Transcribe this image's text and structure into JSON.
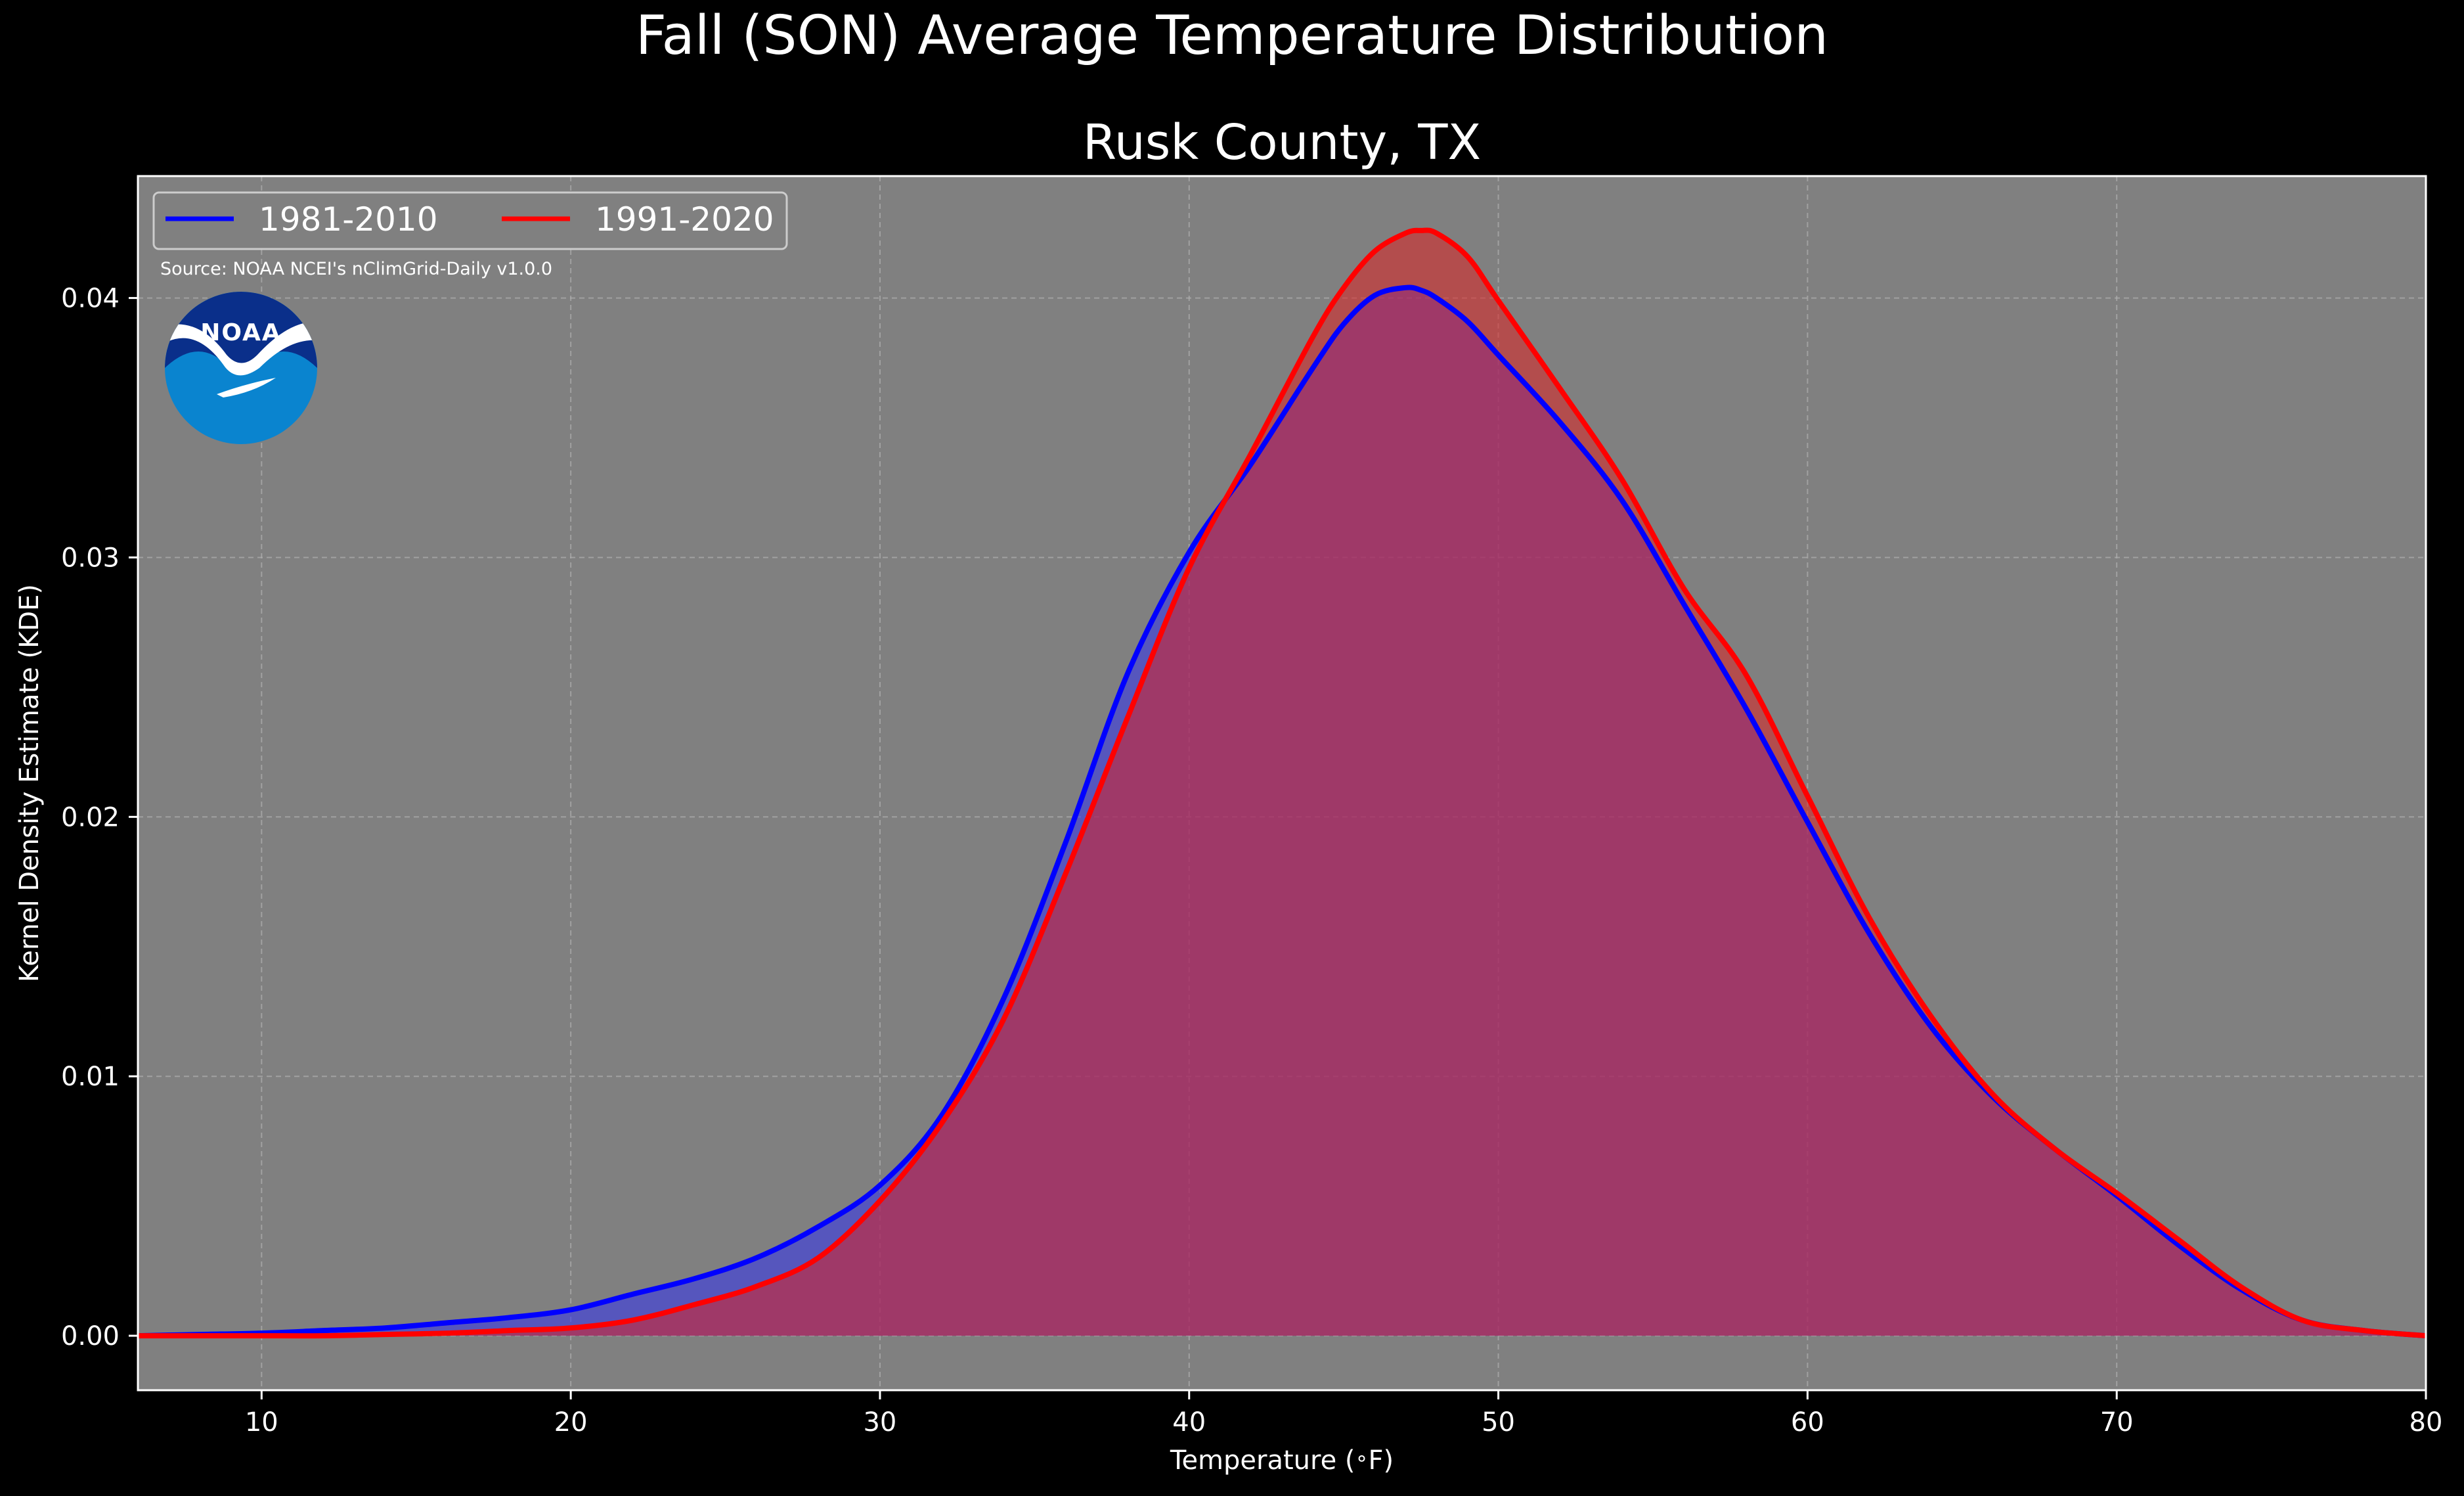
{
  "chart_data": {
    "type": "area",
    "title": "Fall (SON) Average Temperature Distribution",
    "subtitle": "Rusk County, TX",
    "xlabel": "Temperature ($^\\circ$F)",
    "ylabel": "Kernel Density Estimate (KDE)",
    "xlim": [
      6,
      80
    ],
    "ylim": [
      -0.0021,
      0.0447
    ],
    "xticks": [
      10,
      20,
      30,
      40,
      50,
      60,
      70,
      80
    ],
    "xtick_labels": [
      "10",
      "20",
      "30",
      "40",
      "50",
      "60",
      "70",
      "80"
    ],
    "yticks": [
      0.0,
      0.01,
      0.02,
      0.03,
      0.04
    ],
    "ytick_labels": [
      "0.00",
      "0.01",
      "0.02",
      "0.03",
      "0.04"
    ],
    "grid": true,
    "legend_placement": "top-left",
    "source": "Source: NOAA NCEI's nClimGrid-Daily v1.0.0",
    "logo_text": "NOAA",
    "x": [
      6,
      8,
      10,
      12,
      14,
      16,
      18,
      20,
      22,
      24,
      26,
      28,
      30,
      32,
      34,
      36,
      38,
      40,
      42,
      44,
      45,
      46,
      47,
      47.5,
      48,
      49,
      50,
      52,
      54,
      56,
      58,
      60,
      62,
      64,
      66,
      68,
      70,
      72,
      74,
      76,
      78,
      80
    ],
    "series": [
      {
        "name": "1981-2010",
        "color": "#0000ff",
        "fill": "#3333ee",
        "values": [
          0.0,
          5e-05,
          0.0001,
          0.0002,
          0.0003,
          0.0005,
          0.0007,
          0.001,
          0.0016,
          0.0022,
          0.003,
          0.0042,
          0.0058,
          0.0085,
          0.013,
          0.019,
          0.0255,
          0.0302,
          0.0336,
          0.0373,
          0.039,
          0.0401,
          0.0404,
          0.0403,
          0.04,
          0.0391,
          0.0378,
          0.0352,
          0.0322,
          0.0282,
          0.0242,
          0.0198,
          0.0155,
          0.0119,
          0.0092,
          0.0072,
          0.0054,
          0.0035,
          0.0018,
          0.0006,
          0.0002,
          0.0
        ]
      },
      {
        "name": "1991-2020",
        "color": "#ff0000",
        "fill": "#dd2222",
        "values": [
          0.0,
          0.0,
          0.0,
          0.0,
          5e-05,
          0.0001,
          0.0002,
          0.0003,
          0.0006,
          0.0012,
          0.0019,
          0.003,
          0.0052,
          0.0082,
          0.0122,
          0.0178,
          0.0238,
          0.0296,
          0.034,
          0.0385,
          0.0404,
          0.0418,
          0.0425,
          0.0426,
          0.0425,
          0.0416,
          0.0399,
          0.0365,
          0.033,
          0.0288,
          0.0255,
          0.0208,
          0.0161,
          0.0123,
          0.0093,
          0.0072,
          0.0055,
          0.0037,
          0.0019,
          0.0006,
          0.0002,
          0.0
        ]
      }
    ]
  }
}
